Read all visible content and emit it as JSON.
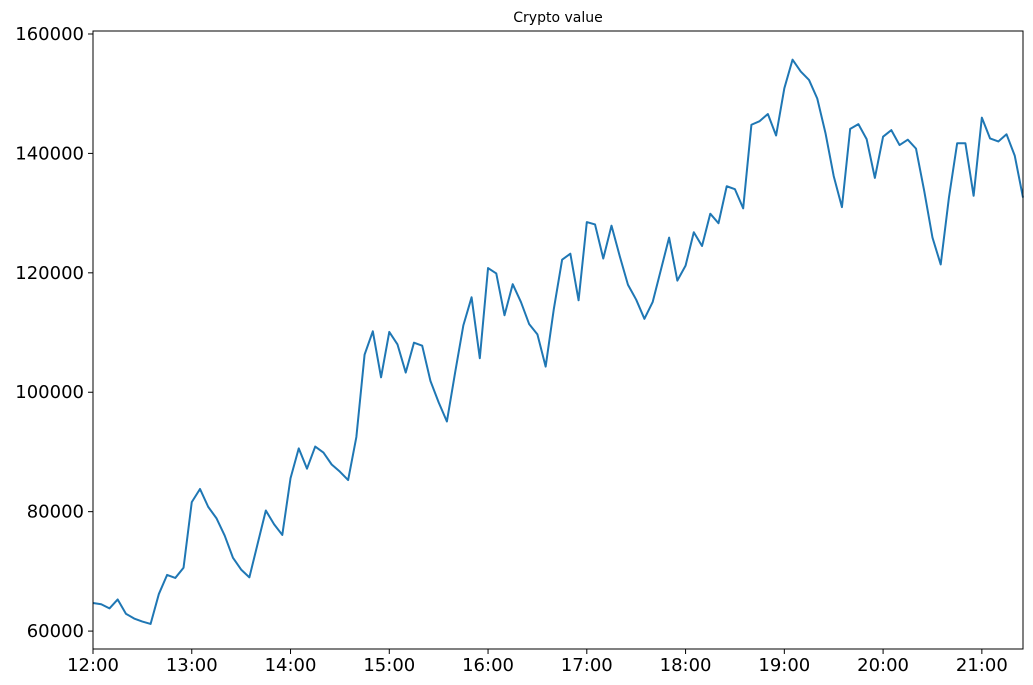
{
  "chart_data": {
    "type": "line",
    "title": "Crypto value",
    "xlabel": "",
    "ylabel": "",
    "x_unit": "time (hh:mm)",
    "xlim": [
      "12:00",
      "21:25"
    ],
    "ylim": [
      57000,
      160500
    ],
    "x_ticks": [
      "12:00",
      "13:00",
      "14:00",
      "15:00",
      "16:00",
      "17:00",
      "18:00",
      "19:00",
      "20:00",
      "21:00"
    ],
    "y_ticks": [
      "60000",
      "80000",
      "100000",
      "120000",
      "140000",
      "160000"
    ],
    "y_tick_values": [
      60000,
      80000,
      100000,
      120000,
      140000,
      160000
    ],
    "grid": false,
    "legend": "none",
    "colors": {
      "line": "#1f77b4",
      "axis": "#000000",
      "background": "#ffffff"
    },
    "series": [
      {
        "x": [
          "12:00",
          "12:05",
          "12:10",
          "12:15",
          "12:20",
          "12:25",
          "12:30",
          "12:35",
          "12:40",
          "12:45",
          "12:50",
          "12:55",
          "13:00",
          "13:05",
          "13:10",
          "13:15",
          "13:20",
          "13:25",
          "13:30",
          "13:35",
          "13:40",
          "13:45",
          "13:50",
          "13:55",
          "14:00",
          "14:05",
          "14:10",
          "14:15",
          "14:20",
          "14:25",
          "14:30",
          "14:35",
          "14:40",
          "14:45",
          "14:50",
          "14:55",
          "15:00",
          "15:05",
          "15:10",
          "15:15",
          "15:20",
          "15:25",
          "15:30",
          "15:35",
          "15:40",
          "15:45",
          "15:50",
          "15:55",
          "16:00",
          "16:05",
          "16:10",
          "16:15",
          "16:20",
          "16:25",
          "16:30",
          "16:35",
          "16:40",
          "16:45",
          "16:50",
          "16:55",
          "17:00",
          "17:05",
          "17:10",
          "17:15",
          "17:20",
          "17:25",
          "17:30",
          "17:35",
          "17:40",
          "17:45",
          "17:50",
          "17:55",
          "18:00",
          "18:05",
          "18:10",
          "18:15",
          "18:20",
          "18:25",
          "18:30",
          "18:35",
          "18:40",
          "18:45",
          "18:50",
          "18:55",
          "19:00",
          "19:05",
          "19:10",
          "19:15",
          "19:20",
          "19:25",
          "19:30",
          "19:35",
          "19:40",
          "19:45",
          "19:50",
          "19:55",
          "20:00",
          "20:05",
          "20:10",
          "20:15",
          "20:20",
          "20:25",
          "20:30",
          "20:35",
          "20:40",
          "20:45",
          "20:50",
          "20:55",
          "21:00",
          "21:05",
          "21:10",
          "21:15",
          "21:20",
          "21:25"
        ],
        "values": [
          64700,
          64500,
          63800,
          65300,
          62900,
          62100,
          61600,
          61200,
          66200,
          69400,
          68900,
          70600,
          81600,
          83800,
          80800,
          78900,
          76000,
          72300,
          70300,
          69000,
          74600,
          80200,
          77900,
          76100,
          85600,
          90600,
          87200,
          90900,
          89900,
          87900,
          86700,
          85300,
          92500,
          106300,
          110200,
          102500,
          110100,
          108000,
          103300,
          108300,
          107800,
          101900,
          98300,
          95100,
          103300,
          111200,
          115900,
          105700,
          120800,
          119900,
          112900,
          118100,
          115100,
          111400,
          109700,
          104300,
          114000,
          122200,
          123200,
          115400,
          128500,
          128100,
          122400,
          127900,
          122800,
          118000,
          115500,
          112300,
          115100,
          120500,
          125900,
          118700,
          121200,
          126800,
          124500,
          129900,
          128300,
          134500,
          134000,
          130800,
          144800,
          145400,
          146600,
          143000,
          150900,
          155700,
          153700,
          152300,
          149200,
          143400,
          136200,
          131000,
          144100,
          144900,
          142400,
          135900,
          142800,
          143900,
          141400,
          142300,
          140800,
          133700,
          125900,
          121400,
          132600,
          141700,
          141700,
          132900,
          146000,
          142500,
          142000,
          143200,
          139600,
          132600
        ]
      }
    ]
  }
}
